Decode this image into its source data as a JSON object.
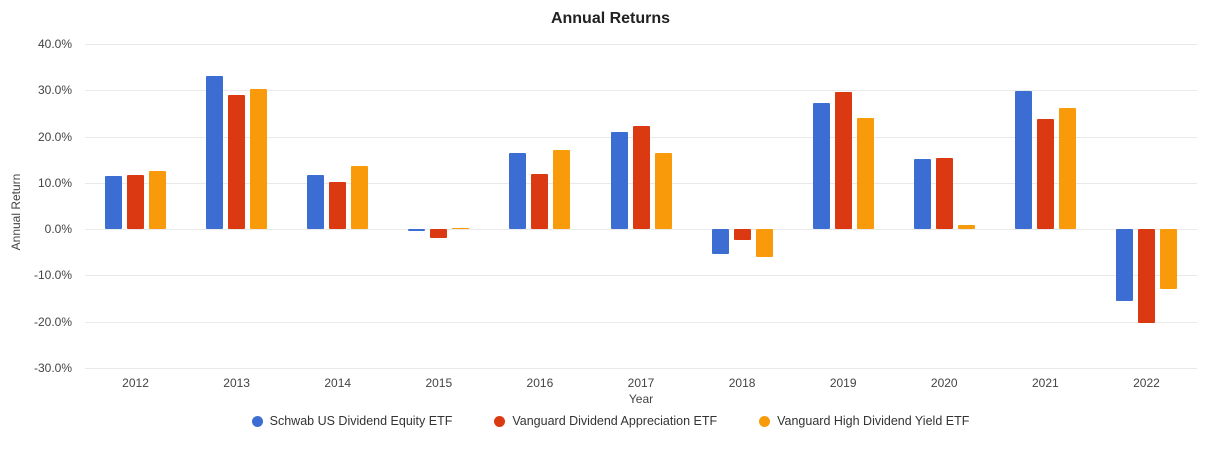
{
  "title": "Annual Returns",
  "axis": {
    "y_title": "Annual Return",
    "x_title": "Year"
  },
  "colors": {
    "series_blue": "#3b6dd3",
    "series_red": "#db3912",
    "series_orange": "#f99a0b",
    "gridline": "#e9e9e9",
    "tick_text": "#444444",
    "title_text": "#212121",
    "background": "#ffffff"
  },
  "chart_data": {
    "type": "bar",
    "title": "Annual Returns",
    "xlabel": "Year",
    "ylabel": "Annual Return",
    "categories": [
      "2012",
      "2013",
      "2014",
      "2015",
      "2016",
      "2017",
      "2018",
      "2019",
      "2020",
      "2021",
      "2022"
    ],
    "series": [
      {
        "name": "Schwab US Dividend Equity ETF",
        "color": "#3b6dd3",
        "values": [
          11.4,
          33.0,
          11.7,
          -0.4,
          16.4,
          20.9,
          -5.3,
          27.3,
          15.1,
          29.8,
          -15.5
        ]
      },
      {
        "name": "Vanguard Dividend Appreciation ETF",
        "color": "#db3912",
        "values": [
          11.6,
          28.9,
          10.1,
          -2.0,
          12.0,
          22.3,
          -2.3,
          29.6,
          15.4,
          23.8,
          -20.2
        ]
      },
      {
        "name": "Vanguard High Dividend Yield ETF",
        "color": "#f99a0b",
        "values": [
          12.6,
          30.2,
          13.6,
          0.1,
          17.1,
          16.5,
          -6.1,
          24.0,
          1.0,
          26.1,
          -13.0
        ]
      }
    ],
    "ylim": [
      -30,
      40
    ],
    "ytick_step": 10,
    "ytick_labels": [
      "40.0%",
      "30.0%",
      "20.0%",
      "10.0%",
      "0.0%",
      "-10.0%",
      "-20.0%",
      "-30.0%"
    ],
    "grid": true,
    "legend_position": "bottom",
    "units": "percent"
  }
}
